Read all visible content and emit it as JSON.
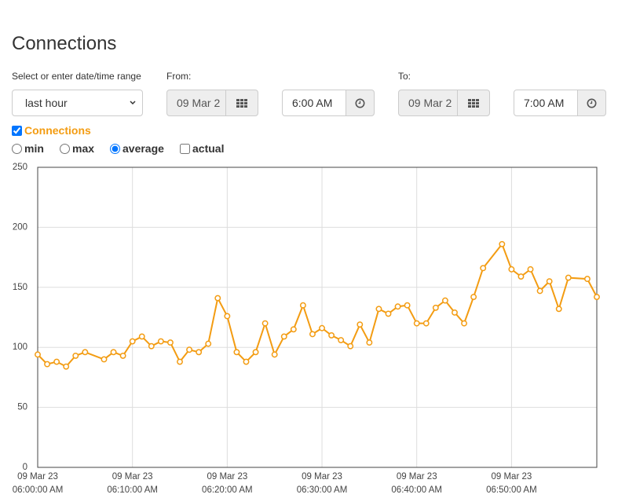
{
  "header": {
    "title": "Connections"
  },
  "form": {
    "range_label": "Select or enter date/time range",
    "range_value": "last hour",
    "from_label": "From:",
    "from_date": "09 Mar 2",
    "from_time": "6:00 AM",
    "to_label": "To:",
    "to_date": "09 Mar 2",
    "to_time": "7:00 AM"
  },
  "options": {
    "min": "min",
    "max": "max",
    "average": "average",
    "actual": "actual"
  },
  "chart_data": {
    "type": "line",
    "x": [
      0,
      1,
      2,
      3,
      4,
      5,
      7,
      8,
      9,
      10,
      11,
      12,
      13,
      14,
      15,
      16,
      17,
      18,
      19,
      20,
      21,
      22,
      23,
      24,
      25,
      26,
      27,
      28,
      29,
      30,
      31,
      32,
      33,
      34,
      35,
      36,
      37,
      38,
      39,
      40,
      41,
      42,
      43,
      44,
      45,
      46,
      47,
      49,
      50,
      51,
      52,
      53,
      54,
      55,
      56,
      58,
      59
    ],
    "series": [
      {
        "name": "Connections",
        "color": "#f39c12",
        "values": [
          94,
          86,
          88,
          84,
          93,
          96,
          90,
          96,
          93,
          105,
          109,
          101,
          105,
          104,
          88,
          98,
          96,
          103,
          141,
          126,
          96,
          88,
          96,
          120,
          94,
          109,
          115,
          135,
          111,
          116,
          110,
          106,
          101,
          119,
          104,
          132,
          128,
          134,
          135,
          120,
          120,
          133,
          139,
          129,
          120,
          142,
          166,
          186,
          165,
          159,
          165,
          147,
          155,
          132,
          158,
          157,
          142
        ]
      }
    ],
    "xlim": [
      0,
      59
    ],
    "xticks": [
      {
        "value": 0,
        "label": "09 Mar 23 06:00:00 AM"
      },
      {
        "value": 10,
        "label": "09 Mar 23 06:10:00 AM"
      },
      {
        "value": 20,
        "label": "09 Mar 23 06:20:00 AM"
      },
      {
        "value": 30,
        "label": "09 Mar 23 06:30:00 AM"
      },
      {
        "value": 40,
        "label": "09 Mar 23 06:40:00 AM"
      },
      {
        "value": 50,
        "label": "09 Mar 23 06:50:00 AM"
      }
    ],
    "ylim": [
      0,
      250
    ],
    "yticks": [
      0,
      50,
      100,
      150,
      200,
      250
    ],
    "grid": true
  }
}
